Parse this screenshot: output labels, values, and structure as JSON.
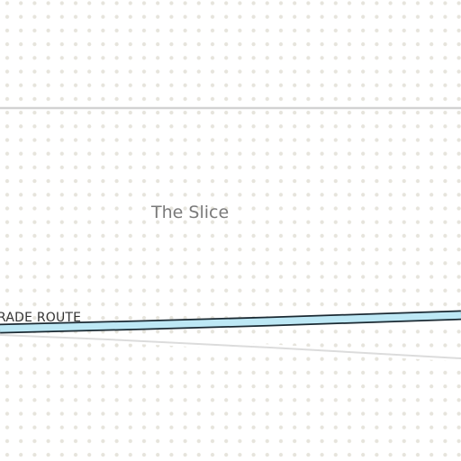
{
  "map": {
    "colors": {
      "background": "#ffffff",
      "dot_pattern": "#e6e4dc",
      "road_line": "#d2d2d2",
      "route_fill": "#bde8f5",
      "route_outline": "#1b2a33",
      "place_label": "#7a7a7a",
      "route_label": "#333333"
    },
    "place_label": "The Slice",
    "route_label": "RADE ROUTE"
  }
}
